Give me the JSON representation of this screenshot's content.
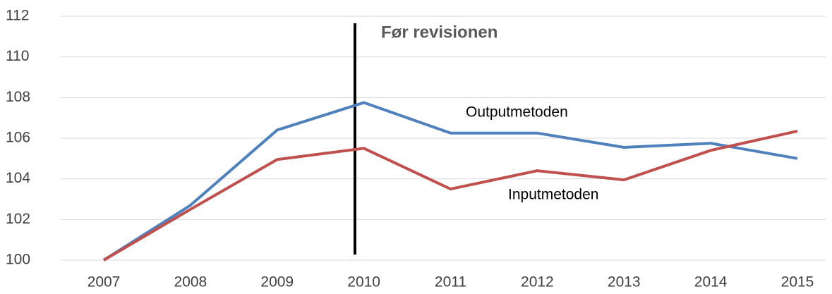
{
  "chart_data": {
    "type": "line",
    "annotation": "Før revisionen",
    "categories": [
      "2007",
      "2008",
      "2009",
      "2010",
      "2011",
      "2012",
      "2013",
      "2014",
      "2015"
    ],
    "series": [
      {
        "name": "Outputmetoden",
        "color": "#4f81bd",
        "values": [
          100,
          102.7,
          106.4,
          107.75,
          106.25,
          106.25,
          105.55,
          105.75,
          105.0
        ]
      },
      {
        "name": "Inputmetoden",
        "color": "#c0504d",
        "values": [
          100,
          102.5,
          104.95,
          105.5,
          103.5,
          104.4,
          103.95,
          105.4,
          106.35
        ]
      }
    ],
    "ylim": [
      100,
      112
    ],
    "yticks": [
      100,
      102,
      104,
      106,
      108,
      110,
      112
    ],
    "grid": true
  }
}
